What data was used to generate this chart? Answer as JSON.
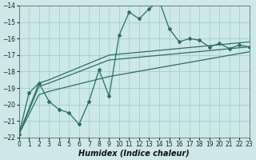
{
  "title": "",
  "xlabel": "Humidex (Indice chaleur)",
  "ylabel": "",
  "background_color": "#cce8e8",
  "grid_color": "#aacccc",
  "line_color": "#2a6e64",
  "x_min": 0,
  "x_max": 23,
  "y_min": -22,
  "y_max": -14,
  "x_ticks": [
    0,
    1,
    2,
    3,
    4,
    5,
    6,
    7,
    8,
    9,
    10,
    11,
    12,
    13,
    14,
    15,
    16,
    17,
    18,
    19,
    20,
    21,
    22,
    23
  ],
  "y_ticks": [
    -22,
    -21,
    -20,
    -19,
    -18,
    -17,
    -16,
    -15,
    -14
  ],
  "main_x": [
    0,
    1,
    2,
    3,
    4,
    5,
    6,
    7,
    8,
    9,
    10,
    11,
    12,
    13,
    14,
    15,
    16,
    17,
    18,
    19,
    20,
    21,
    22,
    23
  ],
  "main_y": [
    -21.8,
    -19.3,
    -18.7,
    -19.8,
    -20.3,
    -20.5,
    -21.2,
    -19.8,
    -17.9,
    -19.5,
    -15.8,
    -14.4,
    -14.8,
    -14.2,
    -13.7,
    -15.4,
    -16.2,
    -16.0,
    -16.1,
    -16.5,
    -16.3,
    -16.6,
    -16.4,
    -16.5
  ],
  "band_upper_x": [
    0,
    2,
    3,
    9,
    23
  ],
  "band_upper_y": [
    -21.8,
    -18.7,
    -18.5,
    -17.0,
    -16.2
  ],
  "band_mid_x": [
    0,
    2,
    3,
    9,
    23
  ],
  "band_mid_y": [
    -21.8,
    -18.9,
    -18.7,
    -17.3,
    -16.5
  ],
  "band_lower_x": [
    0,
    2,
    3,
    9,
    23
  ],
  "band_lower_y": [
    -21.8,
    -19.4,
    -19.2,
    -18.3,
    -16.8
  ]
}
